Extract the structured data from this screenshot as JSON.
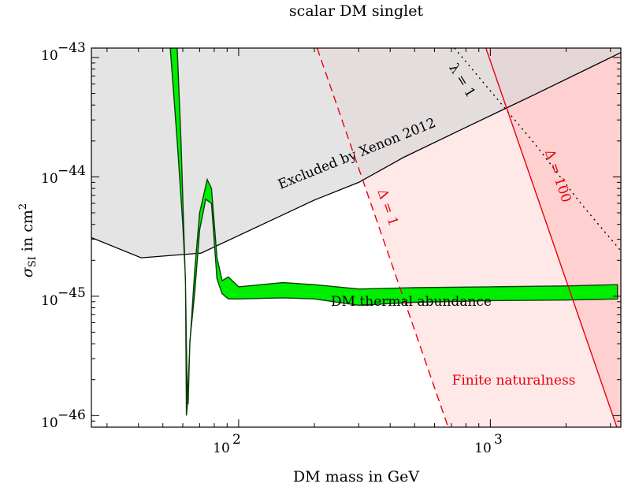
{
  "chart_data": {
    "type": "area",
    "title": "scalar DM singlet",
    "xlabel": "DM mass in GeV",
    "ylabel": "σ_SI in cm²",
    "ylabel_main": "σ",
    "ylabel_sub": "SI",
    "ylabel_rest": " in cm",
    "ylabel_sup": "2",
    "x_scale": "log",
    "y_scale": "log",
    "xlim": [
      26,
      3300
    ],
    "ylim": [
      8e-47,
      1.2e-43
    ],
    "grid": false,
    "x_ticks": [
      {
        "value": 100,
        "base": "10",
        "exp": "2"
      },
      {
        "value": 1000,
        "base": "10",
        "exp": "3"
      }
    ],
    "y_ticks": [
      {
        "value": 1e-43,
        "base": "10",
        "exp": "−43"
      },
      {
        "value": 1e-44,
        "base": "10",
        "exp": "−44"
      },
      {
        "value": 1e-45,
        "base": "10",
        "exp": "−45"
      },
      {
        "value": 1e-46,
        "base": "10",
        "exp": "−46"
      }
    ],
    "annotations": {
      "xenon": "Excluded by Xenon 2012",
      "thermal": "DM thermal abundance",
      "lambda": "λ = 1",
      "delta1": "Δ = 1",
      "delta100": "Δ = 100",
      "naturalness": "Finite naturalness"
    },
    "colors": {
      "excluded_fill": "#e3e3e3",
      "band_fill": "#00ee00",
      "naturalness_fill": "#ffd6d6",
      "red": "#e8000b"
    },
    "series": [
      {
        "name": "Excluded by Xenon 2012",
        "style": "solid-black-filled-above",
        "points": [
          [
            26,
            3.1e-45
          ],
          [
            41,
            2.1e-45
          ],
          [
            71,
            2.3e-45
          ],
          [
            200,
            6.4e-45
          ],
          [
            300,
            9e-45
          ],
          [
            450,
            1.45e-44
          ],
          [
            800,
            2.6e-44
          ],
          [
            1500,
            4.9e-44
          ],
          [
            3300,
            1.1e-43
          ]
        ]
      },
      {
        "name": "DM thermal abundance",
        "style": "green-band",
        "upper": [
          [
            53.5,
            1.2e-43
          ],
          [
            57,
            2e-44
          ],
          [
            60,
            4e-45
          ],
          [
            61.5,
            1.4e-45
          ],
          [
            62,
            1e-46
          ],
          [
            62.5,
            1.2e-46
          ],
          [
            64,
            4e-46
          ],
          [
            67,
            1.7e-45
          ],
          [
            70,
            5e-45
          ],
          [
            75,
            9.5e-45
          ],
          [
            78,
            8e-45
          ],
          [
            82,
            2.1e-45
          ],
          [
            86,
            1.35e-45
          ],
          [
            91,
            1.45e-45
          ],
          [
            100,
            1.2e-45
          ],
          [
            150,
            1.3e-45
          ],
          [
            200,
            1.25e-45
          ],
          [
            300,
            1.15e-45
          ],
          [
            500,
            1.18e-45
          ],
          [
            1000,
            1.2e-45
          ],
          [
            2000,
            1.22e-45
          ],
          [
            3200,
            1.25e-45
          ]
        ],
        "lower": [
          [
            57,
            1.2e-43
          ],
          [
            59,
            2e-44
          ],
          [
            61.5,
            1.3e-45
          ],
          [
            62.5,
            1.4e-46
          ],
          [
            63,
            1.25e-46
          ],
          [
            64,
            4.2e-46
          ],
          [
            67,
            1.1e-45
          ],
          [
            70,
            3.6e-45
          ],
          [
            74,
            6.5e-45
          ],
          [
            78,
            6e-45
          ],
          [
            82,
            1.4e-45
          ],
          [
            86,
            1.05e-45
          ],
          [
            91,
            9.5e-46
          ],
          [
            100,
            9.5e-46
          ],
          [
            150,
            9.7e-46
          ],
          [
            200,
            9.5e-46
          ],
          [
            300,
            8.4e-46
          ],
          [
            500,
            8.9e-46
          ],
          [
            1000,
            9.2e-46
          ],
          [
            2000,
            9.3e-46
          ],
          [
            3200,
            9.5e-46
          ]
        ]
      },
      {
        "name": "λ = 1",
        "style": "dotted-black",
        "points": [
          [
            720,
            1.2e-43
          ],
          [
            1500,
            1.9e-44
          ],
          [
            2300,
            5.9e-45
          ],
          [
            3300,
            2.4e-45
          ]
        ]
      },
      {
        "name": "Δ = 1",
        "style": "dashed-red-shaded-right",
        "points": [
          [
            205,
            1.2e-43
          ],
          [
            680,
            8e-47
          ]
        ]
      },
      {
        "name": "Δ = 100",
        "style": "solid-red-shaded-right",
        "points": [
          [
            960,
            1.2e-43
          ],
          [
            3180,
            8e-47
          ]
        ]
      }
    ]
  }
}
